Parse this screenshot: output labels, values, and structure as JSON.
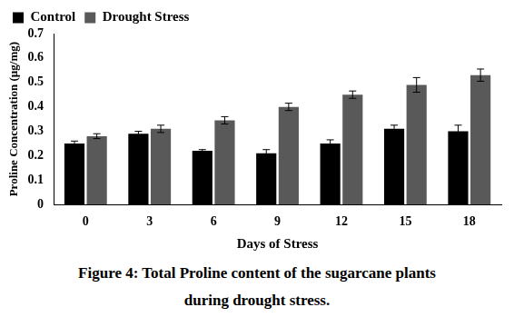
{
  "chart_data": {
    "type": "bar",
    "title": "Figure 4: Total Proline content of the sugarcane plants during drought stress.",
    "x_label": "Days of Stress",
    "y_label": "Proline Concentration (µg/mg)",
    "categories": [
      "0",
      "3",
      "6",
      "9",
      "12",
      "15",
      "18"
    ],
    "series": [
      {
        "name": "Control",
        "color": "#000000",
        "values": [
          0.25,
          0.29,
          0.22,
          0.21,
          0.25,
          0.31,
          0.3
        ],
        "errors": [
          0.01,
          0.01,
          0.005,
          0.015,
          0.015,
          0.015,
          0.025
        ]
      },
      {
        "name": "Drought Stress",
        "color": "#595959",
        "values": [
          0.28,
          0.31,
          0.345,
          0.4,
          0.45,
          0.49,
          0.53
        ],
        "errors": [
          0.01,
          0.015,
          0.015,
          0.015,
          0.015,
          0.03,
          0.025
        ]
      }
    ],
    "ylim": [
      0,
      0.7
    ],
    "yticks": [
      0,
      0.1,
      0.2,
      0.3,
      0.4,
      0.5,
      0.6,
      0.7
    ],
    "grid": false,
    "legend": "top"
  }
}
